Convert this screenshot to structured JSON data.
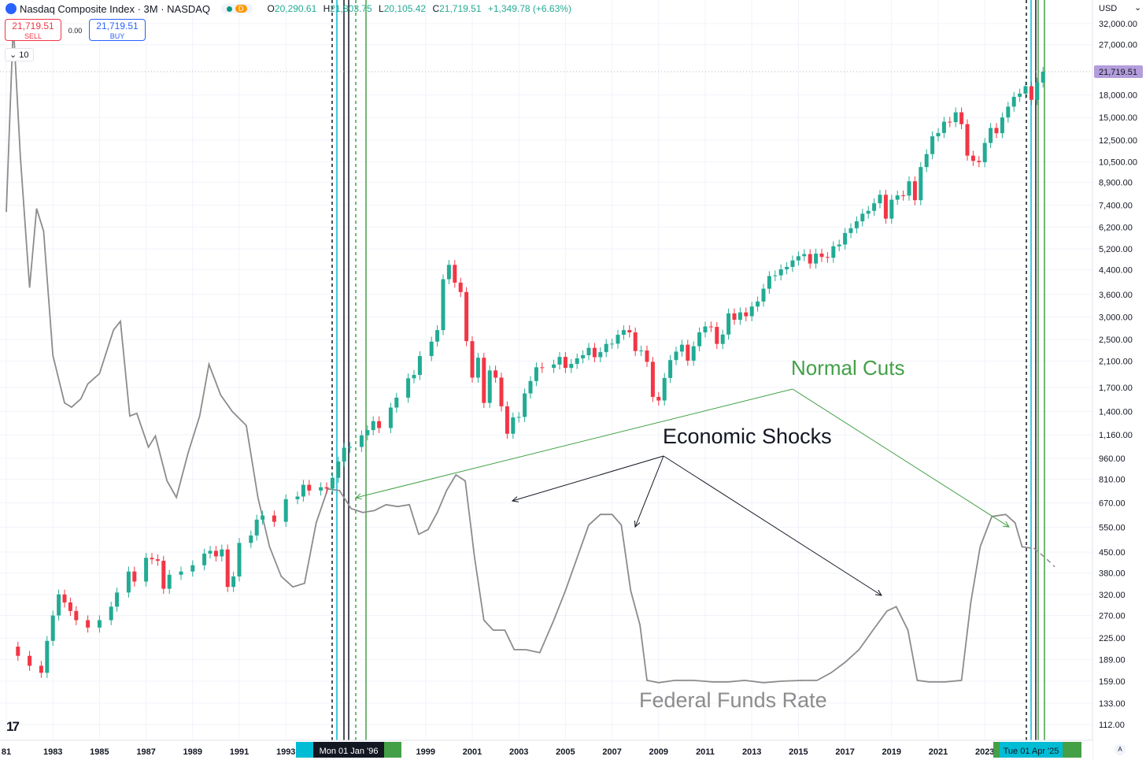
{
  "header": {
    "symbol": "Nasdaq Composite Index · 3M · NASDAQ",
    "badge_letter": "D",
    "o_label": "O",
    "o_value": "20,290.61",
    "h_label": "H",
    "h_value": "21,803.75",
    "l_label": "L",
    "l_value": "20,105.42",
    "c_label": "C",
    "c_value": "21,719.51",
    "change": "+1,349.78 (+6.63%)"
  },
  "trade": {
    "sell_price": "21,719.51",
    "sell_label": "SELL",
    "spread": "0.00",
    "buy_price": "21,719.51",
    "buy_label": "BUY",
    "interval": "10"
  },
  "price_axis": {
    "currency": "USD",
    "current_price": "21,719.51"
  },
  "time_labels": {
    "crosshair_date": "Mon 01 Jan '96",
    "end_date": "Tue 01 Apr '25"
  },
  "annotations": {
    "normal_cuts": "Normal Cuts",
    "economic_shocks": "Economic Shocks",
    "federal_funds_rate": "Federal Funds Rate"
  },
  "colors": {
    "up": "#22ab94",
    "down": "#f23645",
    "fed_line": "#8c8c8c",
    "cuts_annotation": "#43a047",
    "cyan_marker": "#00bcd4",
    "current_price": "#b39ddb"
  },
  "chart_data": {
    "type": "candlestick",
    "title": "Nasdaq Composite Index · 3M · NASDAQ",
    "y_scale": "log",
    "y_ticks": [
      112,
      133,
      159,
      189,
      225,
      270,
      320,
      380,
      450,
      550,
      670,
      810,
      960,
      1160,
      1400,
      1700,
      2100,
      2500,
      3000,
      3600,
      4400,
      5200,
      6200,
      7400,
      8900,
      10500,
      12500,
      15000,
      18000,
      27000,
      32000
    ],
    "y_tick_labels": [
      "112.00",
      "133.00",
      "159.00",
      "189.00",
      "225.00",
      "270.00",
      "320.00",
      "380.00",
      "450.00",
      "550.00",
      "670.00",
      "810.00",
      "960.00",
      "1,160.00",
      "1,400.00",
      "1,700.00",
      "2,100.00",
      "2,500.00",
      "3,000.00",
      "3,600.00",
      "4,400.00",
      "5,200.00",
      "6,200.00",
      "7,400.00",
      "8,900.00",
      "10,500.00",
      "12,500.00",
      "15,000.00",
      "18,000.00",
      "27,000.00",
      "32,000.00"
    ],
    "x_ticks": [
      "81",
      "1983",
      "1985",
      "1987",
      "1989",
      "1991",
      "1993",
      "1999",
      "2001",
      "2003",
      "2005",
      "2007",
      "2009",
      "2011",
      "2013",
      "2015",
      "2017",
      "2019",
      "2021",
      "2023"
    ],
    "nasdaq_quarterly_close": [
      [
        1981.0,
        210
      ],
      [
        1981.5,
        195
      ],
      [
        1982.0,
        180
      ],
      [
        1982.5,
        170
      ],
      [
        1982.75,
        220
      ],
      [
        1983.0,
        270
      ],
      [
        1983.25,
        320
      ],
      [
        1983.5,
        300
      ],
      [
        1983.75,
        280
      ],
      [
        1984.0,
        260
      ],
      [
        1984.5,
        245
      ],
      [
        1985.0,
        260
      ],
      [
        1985.5,
        290
      ],
      [
        1985.75,
        325
      ],
      [
        1986.25,
        385
      ],
      [
        1986.5,
        355
      ],
      [
        1987.0,
        430
      ],
      [
        1987.25,
        425
      ],
      [
        1987.5,
        420
      ],
      [
        1987.75,
        335
      ],
      [
        1988.0,
        375
      ],
      [
        1988.5,
        385
      ],
      [
        1989.0,
        405
      ],
      [
        1989.5,
        445
      ],
      [
        1989.75,
        455
      ],
      [
        1990.0,
        435
      ],
      [
        1990.25,
        460
      ],
      [
        1990.5,
        340
      ],
      [
        1990.75,
        370
      ],
      [
        1991.0,
        485
      ],
      [
        1991.5,
        515
      ],
      [
        1991.75,
        585
      ],
      [
        1992.0,
        605
      ],
      [
        1992.5,
        575
      ],
      [
        1993.0,
        690
      ],
      [
        1993.5,
        705
      ],
      [
        1993.75,
        775
      ],
      [
        1994.0,
        740
      ],
      [
        1994.5,
        760
      ],
      [
        1994.75,
        752
      ],
      [
        1995.0,
        820
      ],
      [
        1995.25,
        935
      ],
      [
        1995.5,
        1045
      ],
      [
        1995.75,
        1052
      ],
      [
        1996.25,
        1155
      ],
      [
        1996.5,
        1205
      ],
      [
        1996.75,
        1295
      ],
      [
        1997.0,
        1225
      ],
      [
        1997.5,
        1445
      ],
      [
        1997.75,
        1565
      ],
      [
        1998.25,
        1830
      ],
      [
        1998.5,
        1880
      ],
      [
        1998.75,
        2190
      ],
      [
        1999.25,
        2460
      ],
      [
        1999.5,
        2700
      ],
      [
        1999.75,
        4070
      ],
      [
        2000.0,
        4570
      ],
      [
        2000.25,
        3960
      ],
      [
        2000.5,
        3670
      ],
      [
        2000.75,
        2470
      ],
      [
        2001.0,
        1840
      ],
      [
        2001.25,
        2160
      ],
      [
        2001.5,
        1500
      ],
      [
        2001.75,
        1950
      ],
      [
        2002.0,
        1840
      ],
      [
        2002.25,
        1460
      ],
      [
        2002.5,
        1170
      ],
      [
        2002.75,
        1335
      ],
      [
        2003.0,
        1340
      ],
      [
        2003.25,
        1620
      ],
      [
        2003.5,
        1790
      ],
      [
        2003.75,
        2000
      ],
      [
        2004.0,
        1990
      ],
      [
        2004.5,
        2045
      ],
      [
        2004.75,
        2175
      ],
      [
        2005.0,
        1990
      ],
      [
        2005.25,
        2055
      ],
      [
        2005.5,
        2150
      ],
      [
        2005.75,
        2205
      ],
      [
        2006.0,
        2340
      ],
      [
        2006.25,
        2170
      ],
      [
        2006.5,
        2260
      ],
      [
        2006.75,
        2415
      ],
      [
        2007.0,
        2420
      ],
      [
        2007.25,
        2600
      ],
      [
        2007.5,
        2700
      ],
      [
        2007.75,
        2650
      ],
      [
        2008.0,
        2280
      ],
      [
        2008.25,
        2290
      ],
      [
        2008.5,
        2090
      ],
      [
        2008.75,
        1575
      ],
      [
        2009.0,
        1530
      ],
      [
        2009.25,
        1835
      ],
      [
        2009.5,
        2120
      ],
      [
        2009.75,
        2270
      ],
      [
        2010.0,
        2400
      ],
      [
        2010.25,
        2110
      ],
      [
        2010.5,
        2370
      ],
      [
        2010.75,
        2650
      ],
      [
        2011.0,
        2780
      ],
      [
        2011.25,
        2770
      ],
      [
        2011.5,
        2415
      ],
      [
        2011.75,
        2605
      ],
      [
        2012.0,
        3090
      ],
      [
        2012.25,
        2935
      ],
      [
        2012.5,
        3115
      ],
      [
        2012.75,
        3020
      ],
      [
        2013.0,
        3265
      ],
      [
        2013.25,
        3400
      ],
      [
        2013.5,
        3770
      ],
      [
        2013.75,
        4175
      ],
      [
        2014.0,
        4200
      ],
      [
        2014.25,
        4410
      ],
      [
        2014.5,
        4495
      ],
      [
        2014.75,
        4735
      ],
      [
        2015.0,
        4900
      ],
      [
        2015.25,
        4985
      ],
      [
        2015.5,
        4620
      ],
      [
        2015.75,
        5005
      ],
      [
        2016.0,
        4870
      ],
      [
        2016.25,
        4840
      ],
      [
        2016.5,
        5310
      ],
      [
        2016.75,
        5385
      ],
      [
        2017.0,
        5910
      ],
      [
        2017.25,
        6140
      ],
      [
        2017.5,
        6495
      ],
      [
        2017.75,
        6905
      ],
      [
        2018.0,
        7065
      ],
      [
        2018.25,
        7510
      ],
      [
        2018.5,
        8045
      ],
      [
        2018.75,
        6635
      ],
      [
        2019.0,
        7730
      ],
      [
        2019.25,
        8005
      ],
      [
        2019.5,
        7995
      ],
      [
        2019.75,
        8970
      ],
      [
        2020.0,
        7700
      ],
      [
        2020.25,
        10060
      ],
      [
        2020.5,
        11170
      ],
      [
        2020.75,
        12890
      ],
      [
        2021.0,
        13245
      ],
      [
        2021.25,
        14505
      ],
      [
        2021.5,
        14450
      ],
      [
        2021.75,
        15645
      ],
      [
        2022.0,
        14220
      ],
      [
        2022.25,
        11030
      ],
      [
        2022.5,
        10575
      ],
      [
        2022.75,
        10465
      ],
      [
        2023.0,
        12220
      ],
      [
        2023.25,
        13790
      ],
      [
        2023.5,
        13220
      ],
      [
        2023.75,
        15010
      ],
      [
        2024.0,
        16380
      ],
      [
        2024.25,
        17730
      ],
      [
        2024.5,
        18190
      ],
      [
        2024.75,
        19310
      ],
      [
        2025.0,
        17300
      ],
      [
        2025.25,
        19900
      ],
      [
        2025.5,
        21719.51
      ]
    ],
    "fed_funds_rate_line_index_units": [
      [
        1981.0,
        7000
      ],
      [
        1981.3,
        32000
      ],
      [
        1981.6,
        11000
      ],
      [
        1982.0,
        3800
      ],
      [
        1982.3,
        7200
      ],
      [
        1982.6,
        6000
      ],
      [
        1983.0,
        2200
      ],
      [
        1983.5,
        1500
      ],
      [
        1983.8,
        1450
      ],
      [
        1984.2,
        1550
      ],
      [
        1984.5,
        1750
      ],
      [
        1985.0,
        1900
      ],
      [
        1985.6,
        2700
      ],
      [
        1985.9,
        2900
      ],
      [
        1986.3,
        1350
      ],
      [
        1986.6,
        1380
      ],
      [
        1987.1,
        1050
      ],
      [
        1987.4,
        1150
      ],
      [
        1987.9,
        800
      ],
      [
        1988.3,
        700
      ],
      [
        1988.8,
        1000
      ],
      [
        1989.3,
        1350
      ],
      [
        1989.7,
        2050
      ],
      [
        1990.2,
        1600
      ],
      [
        1990.7,
        1400
      ],
      [
        1991.3,
        1250
      ],
      [
        1991.8,
        700
      ],
      [
        1992.3,
        470
      ],
      [
        1992.8,
        370
      ],
      [
        1993.3,
        340
      ],
      [
        1993.8,
        350
      ],
      [
        1994.3,
        570
      ],
      [
        1994.8,
        750
      ],
      [
        1995.3,
        740
      ],
      [
        1995.8,
        640
      ],
      [
        1996.3,
        620
      ],
      [
        1996.8,
        630
      ],
      [
        1997.3,
        660
      ],
      [
        1997.8,
        650
      ],
      [
        1998.3,
        660
      ],
      [
        1998.7,
        520
      ],
      [
        1999.1,
        540
      ],
      [
        1999.5,
        620
      ],
      [
        1999.9,
        740
      ],
      [
        2000.3,
        840
      ],
      [
        2000.7,
        800
      ],
      [
        2001.1,
        430
      ],
      [
        2001.5,
        260
      ],
      [
        2001.9,
        240
      ],
      [
        2002.4,
        240
      ],
      [
        2002.8,
        205
      ],
      [
        2003.3,
        205
      ],
      [
        2003.9,
        200
      ],
      [
        2004.5,
        260
      ],
      [
        2005.0,
        330
      ],
      [
        2005.5,
        430
      ],
      [
        2006.0,
        560
      ],
      [
        2006.5,
        610
      ],
      [
        2007.0,
        610
      ],
      [
        2007.4,
        560
      ],
      [
        2007.8,
        330
      ],
      [
        2008.2,
        250
      ],
      [
        2008.5,
        160
      ],
      [
        2009.0,
        157
      ],
      [
        2009.7,
        160
      ],
      [
        2010.5,
        160
      ],
      [
        2011.3,
        158
      ],
      [
        2012.0,
        158
      ],
      [
        2012.7,
        160
      ],
      [
        2013.5,
        157
      ],
      [
        2014.3,
        159
      ],
      [
        2015.2,
        160
      ],
      [
        2015.8,
        160
      ],
      [
        2016.4,
        170
      ],
      [
        2017.0,
        185
      ],
      [
        2017.6,
        205
      ],
      [
        2018.2,
        240
      ],
      [
        2018.8,
        280
      ],
      [
        2019.2,
        290
      ],
      [
        2019.7,
        240
      ],
      [
        2020.1,
        160
      ],
      [
        2020.6,
        158
      ],
      [
        2021.3,
        158
      ],
      [
        2022.0,
        160
      ],
      [
        2022.4,
        300
      ],
      [
        2022.8,
        470
      ],
      [
        2023.3,
        600
      ],
      [
        2023.9,
        610
      ],
      [
        2024.3,
        570
      ],
      [
        2024.6,
        470
      ],
      [
        2025.0,
        465
      ]
    ],
    "annotations": [
      "Normal Cuts",
      "Economic Shocks",
      "Federal Funds Rate"
    ]
  }
}
